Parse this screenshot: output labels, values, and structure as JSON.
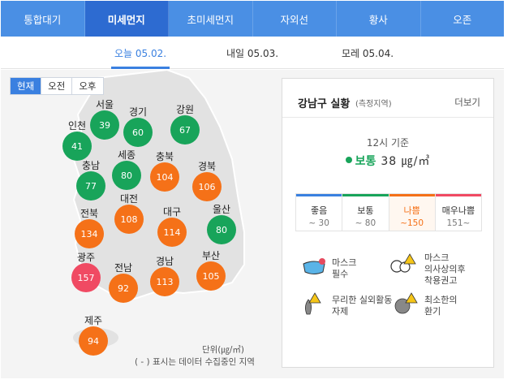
{
  "tabs": [
    {
      "label": "통합대기",
      "active": false
    },
    {
      "label": "미세먼지",
      "active": true
    },
    {
      "label": "초미세먼지",
      "active": false
    },
    {
      "label": "자외선",
      "active": false
    },
    {
      "label": "황사",
      "active": false
    },
    {
      "label": "오존",
      "active": false
    }
  ],
  "dates": {
    "today": "오늘 05.02.",
    "tomorrow": "내일 05.03.",
    "dayafter": "모레 05.04."
  },
  "time_toggle": {
    "now": "현재",
    "am": "오전",
    "pm": "오후"
  },
  "regions": [
    {
      "name": "서울",
      "value": "39",
      "level": "good"
    },
    {
      "name": "경기",
      "value": "60",
      "level": "good"
    },
    {
      "name": "강원",
      "value": "67",
      "level": "good"
    },
    {
      "name": "인천",
      "value": "41",
      "level": "good"
    },
    {
      "name": "세종",
      "value": "80",
      "level": "good"
    },
    {
      "name": "충북",
      "value": "104",
      "level": "bad"
    },
    {
      "name": "충남",
      "value": "77",
      "level": "good"
    },
    {
      "name": "경북",
      "value": "106",
      "level": "bad"
    },
    {
      "name": "대전",
      "value": "108",
      "level": "bad"
    },
    {
      "name": "전북",
      "value": "134",
      "level": "bad"
    },
    {
      "name": "대구",
      "value": "114",
      "level": "bad"
    },
    {
      "name": "울산",
      "value": "80",
      "level": "good"
    },
    {
      "name": "광주",
      "value": "157",
      "level": "very-bad"
    },
    {
      "name": "전남",
      "value": "92",
      "level": "bad"
    },
    {
      "name": "경남",
      "value": "113",
      "level": "bad"
    },
    {
      "name": "부산",
      "value": "105",
      "level": "bad"
    },
    {
      "name": "제주",
      "value": "94",
      "level": "bad"
    }
  ],
  "map_note": {
    "unit": "단위(㎍/㎥)",
    "note": "( - ) 표시는 데이터 수집중인 지역"
  },
  "panel": {
    "title": "강남구 실황",
    "subtitle": "(측정지역)",
    "more": "더보기",
    "basis": "12시 기준",
    "status_word": "보통",
    "status_value": "38 ㎍/㎥"
  },
  "grades": [
    {
      "name": "좋음",
      "range": "~ 30",
      "color": "#3a80e0",
      "active": false
    },
    {
      "name": "보통",
      "range": "~ 80",
      "color": "#18a45a",
      "active": false
    },
    {
      "name": "나쁨",
      "range": "~150",
      "color": "#f57118",
      "active": true
    },
    {
      "name": "매우나쁨",
      "range": "151~",
      "color": "#f04a63",
      "active": false
    }
  ],
  "advice": {
    "mask": "마스크\n필수",
    "mask_sensitive": "마스크\n의사상의후\n착용권고",
    "outdoor": "무리한 실외활동\n자제",
    "ventilate": "최소한의\n환기"
  },
  "colors": {
    "tab_bg": "#4a8fe4",
    "tab_active": "#2d6bd1",
    "good": "#18a45a",
    "bad": "#f57118",
    "very_bad": "#f04a63"
  }
}
